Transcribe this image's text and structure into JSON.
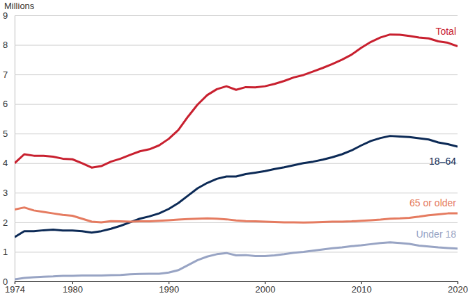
{
  "chart_data": {
    "type": "line",
    "y_label": "Millions",
    "x": [
      1974,
      1975,
      1976,
      1977,
      1978,
      1979,
      1980,
      1981,
      1982,
      1983,
      1984,
      1985,
      1986,
      1987,
      1988,
      1989,
      1990,
      1991,
      1992,
      1993,
      1994,
      1995,
      1996,
      1997,
      1998,
      1999,
      2000,
      2001,
      2002,
      2003,
      2004,
      2005,
      2006,
      2007,
      2008,
      2009,
      2010,
      2011,
      2012,
      2013,
      2014,
      2015,
      2016,
      2017,
      2018,
      2019,
      2020
    ],
    "series": [
      {
        "name": "Total",
        "color": "#c8202f",
        "values": [
          4.0,
          4.3,
          4.25,
          4.25,
          4.22,
          4.15,
          4.13,
          4.0,
          3.85,
          3.9,
          4.05,
          4.15,
          4.28,
          4.4,
          4.47,
          4.6,
          4.82,
          5.12,
          5.57,
          5.98,
          6.3,
          6.5,
          6.6,
          6.48,
          6.57,
          6.56,
          6.6,
          6.68,
          6.78,
          6.9,
          6.98,
          7.1,
          7.22,
          7.35,
          7.5,
          7.67,
          7.9,
          8.1,
          8.25,
          8.35,
          8.34,
          8.3,
          8.25,
          8.22,
          8.12,
          8.07,
          7.95
        ]
      },
      {
        "name": "18–64",
        "color": "#0c2a56",
        "values": [
          1.5,
          1.7,
          1.7,
          1.73,
          1.75,
          1.72,
          1.72,
          1.7,
          1.65,
          1.7,
          1.78,
          1.88,
          2.0,
          2.12,
          2.2,
          2.3,
          2.45,
          2.65,
          2.9,
          3.15,
          3.33,
          3.47,
          3.55,
          3.55,
          3.63,
          3.68,
          3.73,
          3.8,
          3.86,
          3.93,
          4.0,
          4.05,
          4.12,
          4.2,
          4.3,
          4.43,
          4.6,
          4.75,
          4.85,
          4.92,
          4.9,
          4.88,
          4.84,
          4.8,
          4.7,
          4.64,
          4.56
        ]
      },
      {
        "name": "65 or older",
        "color": "#e57b60",
        "values": [
          2.43,
          2.5,
          2.4,
          2.35,
          2.3,
          2.25,
          2.22,
          2.12,
          2.02,
          2.0,
          2.04,
          2.03,
          2.02,
          2.03,
          2.03,
          2.05,
          2.07,
          2.09,
          2.11,
          2.12,
          2.13,
          2.12,
          2.1,
          2.06,
          2.04,
          2.03,
          2.02,
          2.01,
          2.0,
          2.0,
          1.99,
          2.0,
          2.01,
          2.02,
          2.02,
          2.03,
          2.05,
          2.07,
          2.09,
          2.12,
          2.13,
          2.15,
          2.19,
          2.24,
          2.27,
          2.3,
          2.3
        ]
      },
      {
        "name": "Under 18",
        "color": "#98a4c4",
        "values": [
          0.07,
          0.12,
          0.14,
          0.16,
          0.17,
          0.19,
          0.19,
          0.2,
          0.2,
          0.2,
          0.21,
          0.22,
          0.24,
          0.25,
          0.26,
          0.26,
          0.3,
          0.38,
          0.55,
          0.72,
          0.84,
          0.92,
          0.96,
          0.88,
          0.89,
          0.86,
          0.86,
          0.88,
          0.92,
          0.97,
          1.0,
          1.04,
          1.08,
          1.12,
          1.15,
          1.19,
          1.22,
          1.26,
          1.3,
          1.32,
          1.3,
          1.27,
          1.21,
          1.18,
          1.15,
          1.13,
          1.11
        ]
      }
    ],
    "xlim": [
      1974,
      2020
    ],
    "xticks": [
      1974,
      1980,
      1990,
      2000,
      2010,
      2020
    ],
    "ylim": [
      0,
      9
    ],
    "yticks": [
      0,
      1,
      2,
      3,
      4,
      5,
      6,
      7,
      8,
      9
    ],
    "grid": true
  }
}
